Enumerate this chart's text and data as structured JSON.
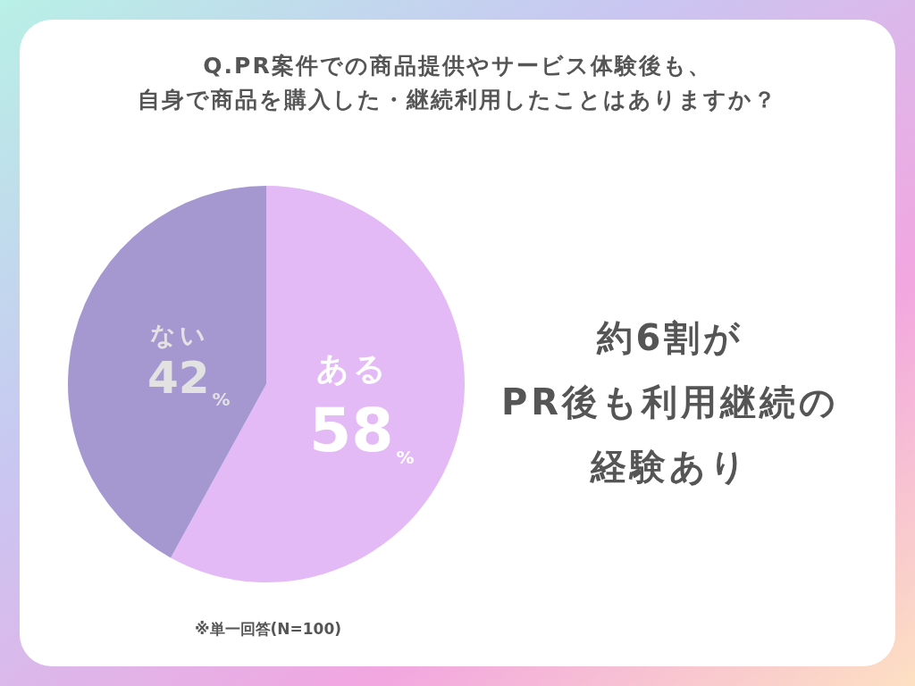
{
  "chart_data": {
    "type": "pie",
    "title": "Q.PR案件での商品提供やサービス体験後も、自身で商品を購入した・継続利用したことはありますか？",
    "categories": [
      "ある",
      "ない"
    ],
    "values": [
      58,
      42
    ],
    "colors": [
      "#e3b9f6",
      "#a598d0"
    ],
    "value_labels": [
      "58$_{%}$",
      "42$_{%}$"
    ],
    "annotations": [
      "約6割が",
      "PR後も利用継続の",
      "経験あり",
      "※単一回答(N=100)"
    ]
  }
}
